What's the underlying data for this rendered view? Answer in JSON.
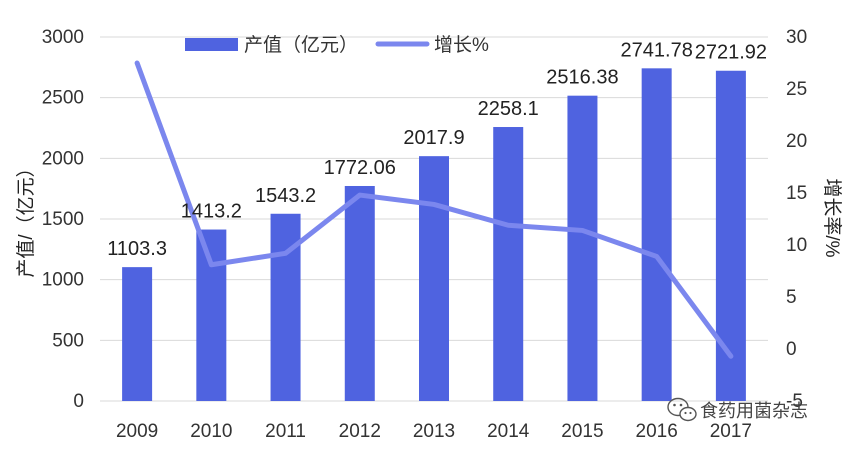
{
  "chart_data": {
    "type": "bar",
    "categories": [
      "2009",
      "2010",
      "2011",
      "2012",
      "2013",
      "2014",
      "2015",
      "2016",
      "2017"
    ],
    "series": [
      {
        "name": "产值（亿元）",
        "type": "bar",
        "axis": "left",
        "color": "#4f63e0",
        "values": [
          1103.3,
          1413.2,
          1543.2,
          1772.06,
          2017.9,
          2258.1,
          2516.38,
          2741.78,
          2721.92
        ],
        "labels": [
          "1103.3",
          "1413.2",
          "1543.2",
          "1772.06",
          "2017.9",
          "2258.1",
          "2516.38",
          "2741.78",
          "2721.92"
        ]
      },
      {
        "name": "增长%",
        "type": "line",
        "axis": "right",
        "color": "#7b87ee",
        "values": [
          27.5,
          8.1,
          9.2,
          14.8,
          13.9,
          11.9,
          11.4,
          8.9,
          -0.7
        ]
      }
    ],
    "ylabel": "产值/（亿元）",
    "y2label": "增长率/%",
    "ylim": [
      0,
      3000
    ],
    "yticks": [
      "0",
      "500",
      "1000",
      "1500",
      "2000",
      "2500",
      "3000"
    ],
    "y2lim": [
      -5,
      30
    ],
    "y2ticks": [
      "-5",
      "0",
      "5",
      "10",
      "15",
      "20",
      "25",
      "30"
    ],
    "legend": "top-center",
    "grid": true
  },
  "watermark": {
    "text": "食药用菌杂志",
    "icon": "wechat-icon"
  }
}
